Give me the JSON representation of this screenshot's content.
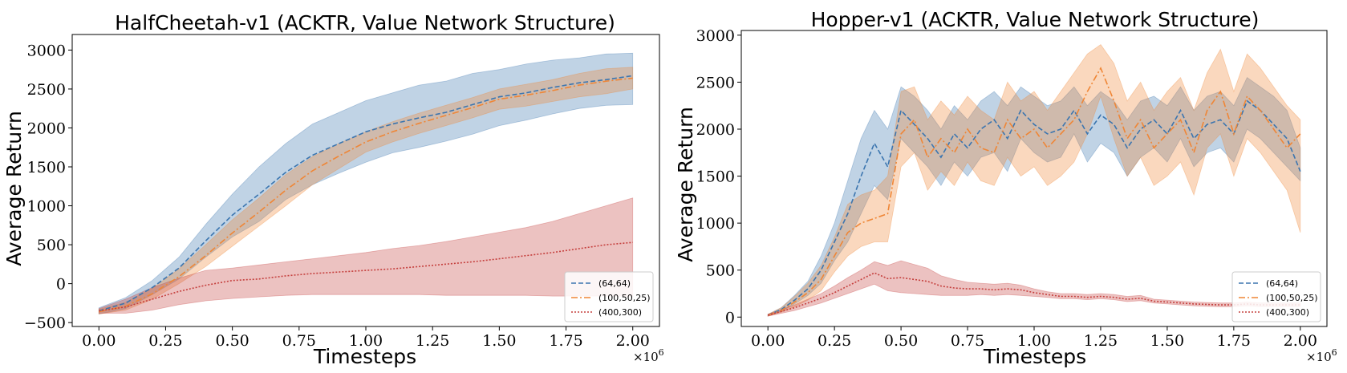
{
  "chart_data": [
    {
      "type": "line",
      "title": "HalfCheetah-v1 (ACKTR, Value Network Structure)",
      "xlabel": "Timesteps",
      "ylabel": "Average Return",
      "x_multiplier": "×10",
      "x_multiplier_exp": "6",
      "xlim": [
        -0.1,
        2.1
      ],
      "ylim": [
        -550,
        3200
      ],
      "xticks": [
        0.0,
        0.25,
        0.5,
        0.75,
        1.0,
        1.25,
        1.5,
        1.75,
        2.0
      ],
      "xtick_labels": [
        "0.00",
        "0.25",
        "0.50",
        "0.75",
        "1.00",
        "1.25",
        "1.50",
        "1.75",
        "2.00"
      ],
      "yticks": [
        -500,
        0,
        500,
        1000,
        1500,
        2000,
        2500,
        3000
      ],
      "ytick_labels": [
        "−500",
        "0",
        "500",
        "1000",
        "1500",
        "2000",
        "2500",
        "3000"
      ],
      "grid": false,
      "legend_position": "bottom-right",
      "x": [
        0.0,
        0.1,
        0.2,
        0.3,
        0.4,
        0.5,
        0.6,
        0.7,
        0.8,
        0.9,
        1.0,
        1.1,
        1.2,
        1.3,
        1.4,
        1.5,
        1.6,
        1.7,
        1.8,
        1.9,
        2.0
      ],
      "series": [
        {
          "name": "(64,64)",
          "color": "#3b75af",
          "style": "dashed",
          "values": [
            -350,
            -250,
            -50,
            200,
            550,
            880,
            1150,
            1430,
            1650,
            1800,
            1950,
            2050,
            2130,
            2200,
            2300,
            2400,
            2450,
            2520,
            2580,
            2620,
            2670
          ],
          "upper": [
            -310,
            -180,
            40,
            340,
            760,
            1150,
            1500,
            1800,
            2050,
            2200,
            2350,
            2450,
            2550,
            2600,
            2700,
            2750,
            2820,
            2870,
            2900,
            2950,
            2960
          ],
          "lower": [
            -390,
            -320,
            -140,
            60,
            340,
            600,
            800,
            1080,
            1270,
            1420,
            1560,
            1680,
            1750,
            1830,
            1920,
            2030,
            2100,
            2180,
            2250,
            2290,
            2300
          ]
        },
        {
          "name": "(100,50,25)",
          "color": "#ef8636",
          "style": "dashdot",
          "values": [
            -360,
            -290,
            -130,
            90,
            360,
            650,
            920,
            1200,
            1450,
            1640,
            1820,
            1950,
            2060,
            2160,
            2260,
            2370,
            2420,
            2480,
            2550,
            2600,
            2640
          ],
          "upper": [
            -330,
            -240,
            -60,
            190,
            500,
            820,
            1100,
            1400,
            1630,
            1800,
            1950,
            2080,
            2190,
            2290,
            2390,
            2500,
            2560,
            2620,
            2700,
            2760,
            2780
          ],
          "lower": [
            -390,
            -340,
            -200,
            0,
            220,
            480,
            740,
            1000,
            1270,
            1480,
            1690,
            1820,
            1930,
            2030,
            2130,
            2240,
            2280,
            2340,
            2400,
            2440,
            2500
          ]
        },
        {
          "name": "(400,300)",
          "color": "#c5403e",
          "style": "dotted",
          "values": [
            -350,
            -300,
            -200,
            -100,
            -20,
            40,
            60,
            100,
            130,
            150,
            170,
            190,
            220,
            250,
            280,
            320,
            360,
            400,
            450,
            500,
            530
          ],
          "upper": [
            -320,
            -200,
            -50,
            70,
            170,
            200,
            240,
            280,
            320,
            360,
            400,
            450,
            490,
            540,
            600,
            660,
            720,
            800,
            900,
            1000,
            1100
          ],
          "lower": [
            -380,
            -380,
            -340,
            -270,
            -220,
            -190,
            -170,
            -150,
            -140,
            -140,
            -140,
            -140,
            -140,
            -150,
            -150,
            -150,
            -150,
            -160,
            -160,
            -160,
            -160
          ]
        }
      ]
    },
    {
      "type": "line",
      "title": "Hopper-v1 (ACKTR, Value Network Structure)",
      "xlabel": "Timesteps",
      "ylabel": "Average Return",
      "x_multiplier": "×10",
      "x_multiplier_exp": "6",
      "xlim": [
        -0.1,
        2.1
      ],
      "ylim": [
        -100,
        3050
      ],
      "xticks": [
        0.0,
        0.25,
        0.5,
        0.75,
        1.0,
        1.25,
        1.5,
        1.75,
        2.0
      ],
      "xtick_labels": [
        "0.00",
        "0.25",
        "0.50",
        "0.75",
        "1.00",
        "1.25",
        "1.50",
        "1.75",
        "2.00"
      ],
      "yticks": [
        0,
        500,
        1000,
        1500,
        2000,
        2500,
        3000
      ],
      "ytick_labels": [
        "0",
        "500",
        "1000",
        "1500",
        "2000",
        "2500",
        "3000"
      ],
      "grid": false,
      "legend_position": "bottom-right",
      "x": [
        0.0,
        0.05,
        0.1,
        0.15,
        0.2,
        0.25,
        0.3,
        0.35,
        0.4,
        0.45,
        0.5,
        0.55,
        0.6,
        0.65,
        0.7,
        0.75,
        0.8,
        0.85,
        0.9,
        0.95,
        1.0,
        1.05,
        1.1,
        1.15,
        1.2,
        1.25,
        1.3,
        1.35,
        1.4,
        1.45,
        1.5,
        1.55,
        1.6,
        1.65,
        1.7,
        1.75,
        1.8,
        1.85,
        1.9,
        1.95,
        2.0
      ],
      "series": [
        {
          "name": "(64,64)",
          "color": "#3b75af",
          "style": "dashed",
          "values": [
            20,
            80,
            180,
            300,
            500,
            800,
            1100,
            1500,
            1850,
            1600,
            2200,
            2050,
            1900,
            1700,
            1950,
            1800,
            2000,
            2100,
            1900,
            2200,
            2050,
            1950,
            2000,
            2200,
            1950,
            2150,
            2050,
            1800,
            2000,
            2100,
            1950,
            2200,
            1900,
            2050,
            2100,
            1950,
            2300,
            2200,
            2050,
            1900,
            1550
          ],
          "upper": [
            30,
            100,
            230,
            380,
            650,
            1000,
            1450,
            1900,
            2200,
            2000,
            2450,
            2350,
            2200,
            2000,
            2250,
            2100,
            2300,
            2400,
            2250,
            2450,
            2350,
            2250,
            2300,
            2450,
            2250,
            2400,
            2300,
            2100,
            2300,
            2350,
            2250,
            2450,
            2200,
            2350,
            2400,
            2250,
            2550,
            2450,
            2350,
            2200,
            1800
          ],
          "lower": [
            10,
            60,
            140,
            230,
            360,
            600,
            800,
            1100,
            1400,
            1250,
            1900,
            1750,
            1600,
            1400,
            1650,
            1500,
            1700,
            1750,
            1550,
            1900,
            1750,
            1650,
            1700,
            1950,
            1650,
            1850,
            1750,
            1500,
            1700,
            1800,
            1650,
            1900,
            1600,
            1750,
            1800,
            1650,
            2000,
            1900,
            1750,
            1600,
            1450
          ]
        },
        {
          "name": "(100,50,25)",
          "color": "#ef8636",
          "style": "dashdot",
          "values": [
            20,
            70,
            160,
            260,
            400,
            650,
            900,
            1000,
            1050,
            1100,
            1950,
            2100,
            1700,
            1900,
            1750,
            2000,
            1800,
            1750,
            2100,
            1900,
            2000,
            1800,
            1950,
            2100,
            2400,
            2650,
            2300,
            1900,
            2100,
            1800,
            1950,
            2100,
            1750,
            2200,
            2400,
            1950,
            2350,
            2200,
            2000,
            1800,
            1950
          ],
          "upper": [
            30,
            100,
            220,
            360,
            550,
            850,
            1200,
            1300,
            1350,
            1500,
            2400,
            2450,
            2100,
            2300,
            2150,
            2350,
            2200,
            2100,
            2500,
            2300,
            2400,
            2200,
            2400,
            2600,
            2800,
            2900,
            2700,
            2300,
            2500,
            2200,
            2400,
            2550,
            2200,
            2600,
            2850,
            2400,
            2800,
            2650,
            2450,
            2250,
            2100
          ],
          "lower": [
            10,
            50,
            110,
            180,
            280,
            480,
            650,
            750,
            800,
            800,
            1600,
            1750,
            1350,
            1550,
            1400,
            1650,
            1450,
            1400,
            1700,
            1500,
            1600,
            1400,
            1500,
            1650,
            1950,
            2350,
            1900,
            1500,
            1700,
            1400,
            1500,
            1650,
            1300,
            1800,
            1950,
            1500,
            1900,
            1750,
            1550,
            1350,
            900
          ]
        },
        {
          "name": "(400,300)",
          "color": "#c5403e",
          "style": "dotted",
          "values": [
            20,
            60,
            100,
            150,
            200,
            260,
            330,
            400,
            470,
            410,
            420,
            400,
            380,
            330,
            310,
            300,
            300,
            290,
            300,
            290,
            260,
            240,
            220,
            220,
            210,
            220,
            210,
            190,
            200,
            170,
            160,
            150,
            140,
            135,
            130,
            130,
            140,
            130,
            130,
            130,
            130
          ],
          "upper": [
            30,
            80,
            130,
            190,
            250,
            330,
            420,
            500,
            590,
            550,
            600,
            560,
            520,
            440,
            400,
            370,
            360,
            350,
            360,
            340,
            300,
            270,
            250,
            250,
            240,
            250,
            240,
            220,
            230,
            190,
            180,
            170,
            160,
            155,
            150,
            150,
            160,
            150,
            150,
            150,
            150
          ],
          "lower": [
            10,
            40,
            70,
            110,
            150,
            200,
            250,
            300,
            350,
            280,
            260,
            250,
            240,
            230,
            230,
            230,
            240,
            230,
            240,
            230,
            220,
            210,
            195,
            195,
            185,
            195,
            185,
            165,
            175,
            150,
            140,
            130,
            120,
            115,
            110,
            110,
            120,
            110,
            110,
            110,
            110
          ]
        }
      ]
    }
  ]
}
